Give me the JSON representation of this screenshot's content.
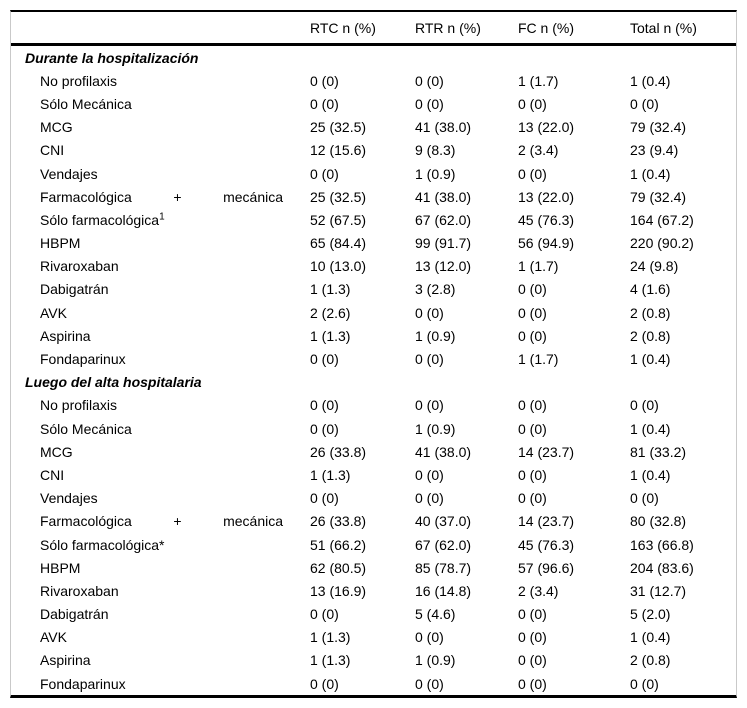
{
  "table": {
    "columns": [
      "RTC n (%)",
      "RTR n (%)",
      "FC n (%)",
      "Total n (%)"
    ],
    "sections": [
      {
        "title": "Durante la hospitalización",
        "rows": [
          {
            "label": "No profilaxis",
            "values": [
              "0 (0)",
              "0 (0)",
              "1 (1.7)",
              "1 (0.4)"
            ]
          },
          {
            "label": "Sólo Mecánica",
            "values": [
              "0 (0)",
              "0 (0)",
              "0 (0)",
              "0 (0)"
            ]
          },
          {
            "label": "MCG",
            "values": [
              "25 (32.5)",
              "41 (38.0)",
              "13 (22.0)",
              "79 (32.4)"
            ]
          },
          {
            "label": "CNI",
            "values": [
              "12 (15.6)",
              "9 (8.3)",
              "2 (3.4)",
              "23 (9.4)"
            ]
          },
          {
            "label": "Vendajes",
            "values": [
              "0 (0)",
              "1 (0.9)",
              "0 (0)",
              "1 (0.4)"
            ]
          },
          {
            "label": "Farmacológica + mecánica",
            "spread": true,
            "values": [
              "25 (32.5)",
              "41 (38.0)",
              "13 (22.0)",
              "79 (32.4)"
            ]
          },
          {
            "label": "Sólo farmacológica",
            "sup": "1",
            "values": [
              "52 (67.5)",
              "67 (62.0)",
              "45 (76.3)",
              "164 (67.2)"
            ]
          },
          {
            "label": "HBPM",
            "values": [
              "65 (84.4)",
              "99 (91.7)",
              "56 (94.9)",
              "220 (90.2)"
            ]
          },
          {
            "label": "Rivaroxaban",
            "values": [
              "10 (13.0)",
              "13 (12.0)",
              "1 (1.7)",
              "24 (9.8)"
            ]
          },
          {
            "label": "Dabigatrán",
            "values": [
              "1 (1.3)",
              "3 (2.8)",
              "0 (0)",
              "4 (1.6)"
            ]
          },
          {
            "label": "AVK",
            "values": [
              "2 (2.6)",
              "0 (0)",
              "0 (0)",
              "2 (0.8)"
            ]
          },
          {
            "label": "Aspirina",
            "values": [
              "1 (1.3)",
              "1 (0.9)",
              "0 (0)",
              "2 (0.8)"
            ]
          },
          {
            "label": "Fondaparinux",
            "values": [
              "0 (0)",
              "0 (0)",
              "1 (1.7)",
              "1 (0.4)"
            ]
          }
        ]
      },
      {
        "title": "Luego del alta hospitalaria",
        "rows": [
          {
            "label": "No profilaxis",
            "values": [
              "0 (0)",
              "0 (0)",
              "0 (0)",
              "0 (0)"
            ]
          },
          {
            "label": "Sólo Mecánica",
            "values": [
              "0 (0)",
              "1 (0.9)",
              "0 (0)",
              "1 (0.4)"
            ]
          },
          {
            "label": "MCG",
            "values": [
              "26 (33.8)",
              "41 (38.0)",
              "14 (23.7)",
              "81 (33.2)"
            ]
          },
          {
            "label": "CNI",
            "values": [
              "1 (1.3)",
              "0 (0)",
              "0 (0)",
              "1 (0.4)"
            ]
          },
          {
            "label": "Vendajes",
            "values": [
              "0 (0)",
              "0 (0)",
              "0 (0)",
              "0 (0)"
            ]
          },
          {
            "label": "Farmacológica + mecánica",
            "spread": true,
            "values": [
              "26 (33.8)",
              "40 (37.0)",
              "14 (23.7)",
              "80 (32.8)"
            ]
          },
          {
            "label": "Sólo farmacológica*",
            "values": [
              "51 (66.2)",
              "67 (62.0)",
              "45 (76.3)",
              "163 (66.8)"
            ]
          },
          {
            "label": "HBPM",
            "values": [
              "62 (80.5)",
              "85 (78.7)",
              "57 (96.6)",
              "204 (83.6)"
            ]
          },
          {
            "label": "Rivaroxaban",
            "values": [
              "13 (16.9)",
              "16 (14.8)",
              "2 (3.4)",
              "31 (12.7)"
            ]
          },
          {
            "label": "Dabigatrán",
            "values": [
              "0 (0)",
              "5 (4.6)",
              "0 (0)",
              "5 (2.0)"
            ]
          },
          {
            "label": "AVK",
            "values": [
              "1 (1.3)",
              "0 (0)",
              "0 (0)",
              "1 (0.4)"
            ]
          },
          {
            "label": "Aspirina",
            "values": [
              "1 (1.3)",
              "1 (0.9)",
              "0 (0)",
              "2 (0.8)"
            ]
          },
          {
            "label": "Fondaparinux",
            "values": [
              "0 (0)",
              "0 (0)",
              "0 (0)",
              "0 (0)"
            ]
          }
        ]
      }
    ]
  }
}
